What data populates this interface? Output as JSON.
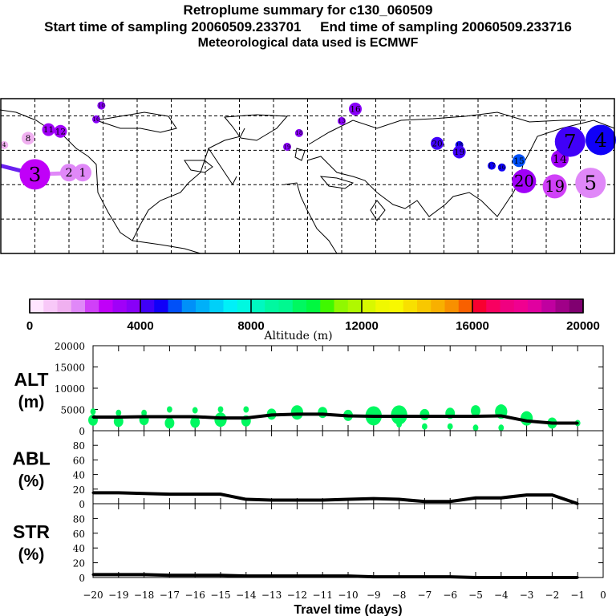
{
  "header": {
    "title": "Retroplume summary for c130_060509",
    "subtitle": "Start time of sampling 20060509.233701     End time of sampling 20060509.233716",
    "met_line": "Meteorological data used is ECMWF"
  },
  "map": {
    "lon_range": [
      -180,
      180
    ],
    "lat_range": [
      0,
      90
    ],
    "grid_step_deg": 20,
    "trail_color": "#6a20f0",
    "points": [
      {
        "label": "3",
        "lon": -160,
        "lat": 46,
        "color": "#c000f8",
        "size": 5
      },
      {
        "label": "2",
        "lon": -140,
        "lat": 47,
        "color": "#e088f8",
        "size": 3
      },
      {
        "label": "1",
        "lon": -132,
        "lat": 47,
        "color": "#e088f8",
        "size": 3
      },
      {
        "label": "8",
        "lon": -164,
        "lat": 67,
        "color": "#f0b0f0",
        "size": 2
      },
      {
        "label": "4",
        "lon": -178,
        "lat": 63,
        "color": "#f0b0f0",
        "size": 1
      },
      {
        "label": "11",
        "lon": -152,
        "lat": 72,
        "color": "#a000f8",
        "size": 2
      },
      {
        "label": "12",
        "lon": -145,
        "lat": 71,
        "color": "#a000f8",
        "size": 2
      },
      {
        "label": "10",
        "lon": -121,
        "lat": 86,
        "color": "#8800f8",
        "size": 1
      },
      {
        "label": "16",
        "lon": -124,
        "lat": 78,
        "color": "#8800f8",
        "size": 1
      },
      {
        "label": "18",
        "lon": -5,
        "lat": 70,
        "color": "#8800f8",
        "size": 1
      },
      {
        "label": "19",
        "lon": -12,
        "lat": 62,
        "color": "#8800f8",
        "size": 1
      },
      {
        "label": "16",
        "lon": 28,
        "lat": 84,
        "color": "#8800f8",
        "size": 2
      },
      {
        "label": "13",
        "lon": 20,
        "lat": 77,
        "color": "#8800f8",
        "size": 1
      },
      {
        "label": "20",
        "lon": 76,
        "lat": 64,
        "color": "#4000f8",
        "size": 2
      },
      {
        "label": "18",
        "lon": 89,
        "lat": 63,
        "color": "#1000f8",
        "size": 1
      },
      {
        "label": "19",
        "lon": 89,
        "lat": 59,
        "color": "#4000f8",
        "size": 2
      },
      {
        "label": "15",
        "lon": 124,
        "lat": 54,
        "color": "#0050f8",
        "size": 2
      },
      {
        "label": "17",
        "lon": 108,
        "lat": 51,
        "color": "#1000f8",
        "size": 1
      },
      {
        "label": "16",
        "lon": 114,
        "lat": 50,
        "color": "#1000f8",
        "size": 1
      },
      {
        "label": "20",
        "lon": 127,
        "lat": 42,
        "color": "#a000f8",
        "size": 4
      },
      {
        "label": "14",
        "lon": 148,
        "lat": 55,
        "color": "#a000f8",
        "size": 3
      },
      {
        "label": "19",
        "lon": 145,
        "lat": 39,
        "color": "#d040f8",
        "size": 4
      },
      {
        "label": "5",
        "lon": 166,
        "lat": 41,
        "color": "#e088f8",
        "size": 5
      },
      {
        "label": "7",
        "lon": 154,
        "lat": 65,
        "color": "#4000f8",
        "size": 5
      },
      {
        "label": "4",
        "lon": 172,
        "lat": 66,
        "color": "#1000f8",
        "size": 5
      }
    ]
  },
  "colorbar": {
    "label": "Altitude (m)",
    "ticks": [
      "0",
      "4000",
      "8000",
      "12000",
      "16000",
      "20000"
    ],
    "colors": [
      "#ffe6ff",
      "#f8c8f8",
      "#f0b0f0",
      "#e088f8",
      "#d040f8",
      "#c000f8",
      "#a000f8",
      "#8800f8",
      "#4000f8",
      "#1000f8",
      "#0050f8",
      "#0090f8",
      "#00b0f8",
      "#00d0f8",
      "#00f0f8",
      "#00f8e0",
      "#00f8c0",
      "#00f8a0",
      "#00f890",
      "#00f860",
      "#00f840",
      "#40f800",
      "#90f800",
      "#b0f800",
      "#d8f800",
      "#f0f800",
      "#f8f800",
      "#f8e000",
      "#f8c800",
      "#f8b000",
      "#f89000",
      "#f86000",
      "#f80030",
      "#f80060",
      "#f00080",
      "#f00090",
      "#e000a0",
      "#c000a0",
      "#a00088",
      "#800070"
    ]
  },
  "chart_data": [
    {
      "type": "line",
      "panel": "ALT",
      "ylabel_line1": "ALT",
      "ylabel_line2": "(m)",
      "ylim": [
        0,
        20000
      ],
      "yticks": [
        "0",
        "5000",
        "10000",
        "15000",
        "20000"
      ],
      "x": [
        -20,
        -19,
        -18,
        -17,
        -16,
        -15,
        -14,
        -13,
        -12,
        -11,
        -10,
        -9,
        -8,
        -7,
        -6,
        -5,
        -4,
        -3,
        -2,
        -1
      ],
      "values": [
        3200,
        3200,
        3300,
        3300,
        3300,
        3000,
        3000,
        3700,
        3900,
        3900,
        3500,
        3400,
        3400,
        3400,
        3400,
        3400,
        3500,
        2300,
        1800,
        1800
      ],
      "line_color": "#000000",
      "blob_color": "#00f860",
      "blobs": [
        {
          "x": -20,
          "alt": 2500,
          "size": 2
        },
        {
          "x": -20,
          "alt": 4500,
          "size": 1
        },
        {
          "x": -19,
          "alt": 2200,
          "size": 2
        },
        {
          "x": -19,
          "alt": 4200,
          "size": 1
        },
        {
          "x": -18,
          "alt": 2600,
          "size": 2
        },
        {
          "x": -18,
          "alt": 4200,
          "size": 1
        },
        {
          "x": -17,
          "alt": 1800,
          "size": 2
        },
        {
          "x": -17,
          "alt": 5000,
          "size": 1
        },
        {
          "x": -16,
          "alt": 2000,
          "size": 2
        },
        {
          "x": -16,
          "alt": 4800,
          "size": 1
        },
        {
          "x": -15,
          "alt": 2600,
          "size": 3
        },
        {
          "x": -15,
          "alt": 5000,
          "size": 1
        },
        {
          "x": -14,
          "alt": 2300,
          "size": 2
        },
        {
          "x": -14,
          "alt": 5000,
          "size": 1
        },
        {
          "x": -13,
          "alt": 3900,
          "size": 2
        },
        {
          "x": -12,
          "alt": 4300,
          "size": 3
        },
        {
          "x": -11,
          "alt": 4300,
          "size": 2
        },
        {
          "x": -10,
          "alt": 3600,
          "size": 2
        },
        {
          "x": -9,
          "alt": 3500,
          "size": 4
        },
        {
          "x": -8,
          "alt": 3700,
          "size": 4
        },
        {
          "x": -8,
          "alt": 1500,
          "size": 1
        },
        {
          "x": -7,
          "alt": 3800,
          "size": 2
        },
        {
          "x": -7,
          "alt": 1000,
          "size": 1
        },
        {
          "x": -6,
          "alt": 4100,
          "size": 2
        },
        {
          "x": -6,
          "alt": 1000,
          "size": 1
        },
        {
          "x": -5,
          "alt": 4700,
          "size": 2
        },
        {
          "x": -5,
          "alt": 700,
          "size": 1
        },
        {
          "x": -4,
          "alt": 4500,
          "size": 3
        },
        {
          "x": -4,
          "alt": 700,
          "size": 1
        },
        {
          "x": -3,
          "alt": 2900,
          "size": 3
        },
        {
          "x": -2,
          "alt": 1800,
          "size": 2
        },
        {
          "x": -1,
          "alt": 1800,
          "size": 1
        }
      ]
    },
    {
      "type": "line",
      "panel": "ABL",
      "ylabel_line1": "ABL",
      "ylabel_line2": "(%)",
      "ylim": [
        0,
        100
      ],
      "yticks": [
        "0",
        "20",
        "40",
        "60",
        "80"
      ],
      "x": [
        -20,
        -19,
        -18,
        -17,
        -16,
        -15,
        -14,
        -13,
        -12,
        -11,
        -10,
        -9,
        -8,
        -7,
        -6,
        -5,
        -4,
        -3,
        -2,
        -1
      ],
      "values": [
        15,
        15,
        14,
        13,
        13,
        13,
        6,
        5,
        5,
        5,
        6,
        7,
        6,
        3,
        3,
        8,
        8,
        12,
        12,
        0
      ]
    },
    {
      "type": "line",
      "panel": "STR",
      "ylabel_line1": "STR",
      "ylabel_line2": "(%)",
      "ylim": [
        0,
        100
      ],
      "yticks": [
        "0",
        "20",
        "40",
        "60",
        "80"
      ],
      "x": [
        -20,
        -19,
        -18,
        -17,
        -16,
        -15,
        -14,
        -13,
        -12,
        -11,
        -10,
        -9,
        -8,
        -7,
        -6,
        -5,
        -4,
        -3,
        -2,
        -1
      ],
      "values": [
        4,
        4,
        4,
        3,
        3,
        3,
        2,
        2,
        2,
        2,
        2,
        1,
        1,
        1,
        1,
        0,
        0,
        0,
        0,
        0
      ],
      "xlabel": "Travel time (days)",
      "xlim": [
        -20,
        0
      ],
      "xticks": [
        "-20",
        "-19",
        "-18",
        "-17",
        "-16",
        "-15",
        "-14",
        "-13",
        "-12",
        "-11",
        "-10",
        "-9",
        "-8",
        "-7",
        "-6",
        "-5",
        "-4",
        "-3",
        "-2",
        "-1",
        "0"
      ]
    }
  ]
}
